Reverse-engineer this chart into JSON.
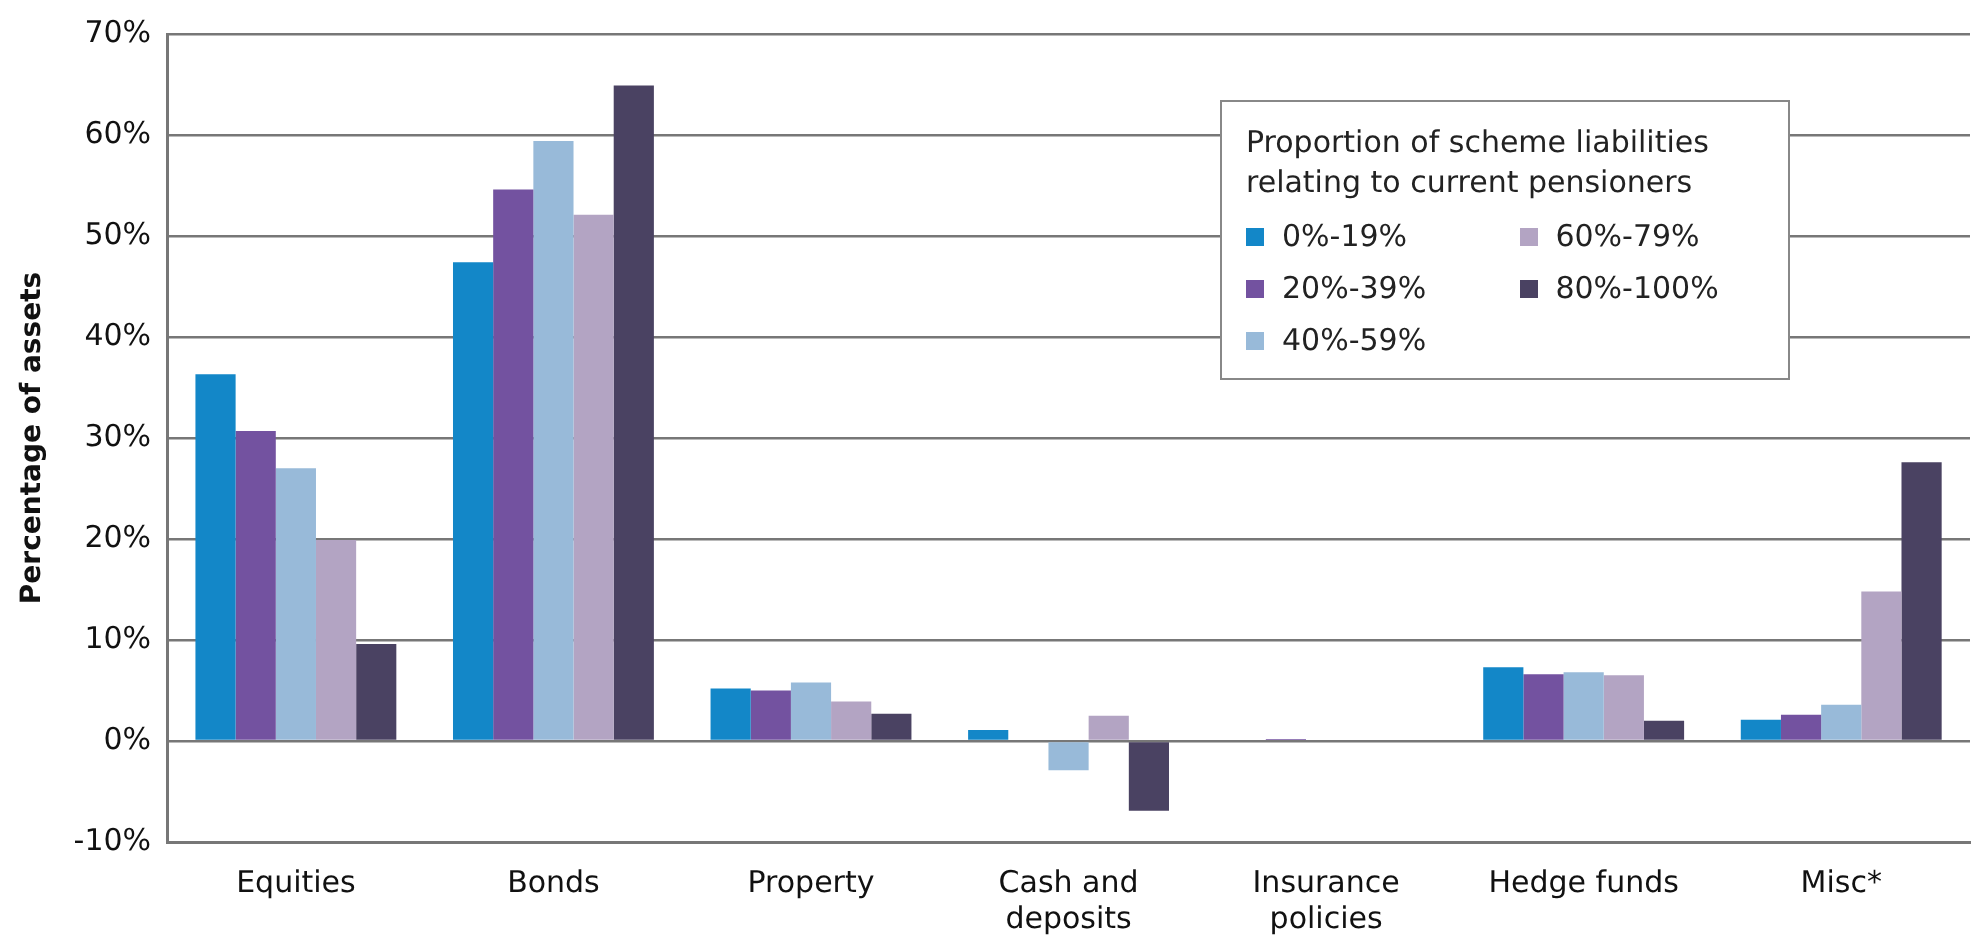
{
  "chart_data": {
    "type": "bar",
    "ylabel": "Percentage of assets",
    "legend_title": "Proportion of scheme liabilities relating to current pensioners",
    "categories": [
      "Equities",
      "Bonds",
      "Property",
      "Cash and deposits",
      "Insurance policies",
      "Hedge funds",
      "Misc*"
    ],
    "series": [
      {
        "name": "0%-19%",
        "color": "#1387c8",
        "values": [
          36.3,
          47.4,
          5.2,
          1.1,
          null,
          7.3,
          2.1
        ]
      },
      {
        "name": "20%-39%",
        "color": "#7352a0",
        "values": [
          30.7,
          54.6,
          5.0,
          0,
          0.2,
          6.6,
          2.6
        ]
      },
      {
        "name": "40%-59%",
        "color": "#98bad9",
        "values": [
          27.0,
          59.4,
          5.8,
          -2.9,
          null,
          6.8,
          3.6
        ]
      },
      {
        "name": "60%-79%",
        "color": "#b3a4c3",
        "values": [
          19.9,
          52.1,
          3.9,
          2.5,
          null,
          6.5,
          14.8
        ]
      },
      {
        "name": "80%-100%",
        "color": "#4a4262",
        "values": [
          9.6,
          64.9,
          2.7,
          -6.9,
          null,
          2.0,
          27.6
        ]
      }
    ],
    "ylim": [
      -10,
      70
    ],
    "yticks": [
      {
        "value": -10,
        "label": "-10%"
      },
      {
        "value": 0,
        "label": "0%"
      },
      {
        "value": 10,
        "label": "10%"
      },
      {
        "value": 20,
        "label": "20%"
      },
      {
        "value": 30,
        "label": "30%"
      },
      {
        "value": 40,
        "label": "40%"
      },
      {
        "value": 50,
        "label": "50%"
      },
      {
        "value": 60,
        "label": "60%"
      },
      {
        "value": 70,
        "label": "70%"
      }
    ],
    "grid": "y",
    "legend": "top right"
  }
}
